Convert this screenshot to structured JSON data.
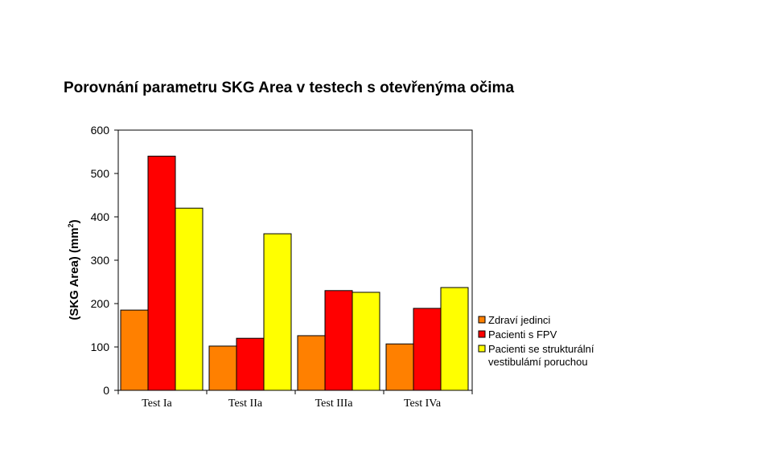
{
  "chart_data": {
    "type": "bar",
    "title": "Porovnání parametru SKG Area v testech s otevřenýma očima",
    "ylabel": "(SKG Area)  (mm",
    "ylabel_sup": "2",
    "ylabel_close": ")",
    "xlabel": "",
    "categories": [
      "Test Ia",
      "Test IIa",
      "Test IIIa",
      "Test IVa"
    ],
    "ylim": [
      0,
      600
    ],
    "yticks": [
      0,
      100,
      200,
      300,
      400,
      500,
      600
    ],
    "grid": false,
    "legend_position": "right",
    "series": [
      {
        "name": "Zdraví jedinci",
        "color": "#FF8000",
        "values": [
          185,
          102,
          126,
          107
        ]
      },
      {
        "name": "Pacienti s FPV",
        "color": "#FF0000",
        "values": [
          540,
          120,
          230,
          189
        ]
      },
      {
        "name": "Pacienti se strukturální vestibulámí poruchou",
        "name_lines": [
          "Pacienti se strukturální",
          "vestibulámí poruchou"
        ],
        "color": "#FFFF00",
        "values": [
          420,
          361,
          226,
          237
        ]
      }
    ]
  }
}
